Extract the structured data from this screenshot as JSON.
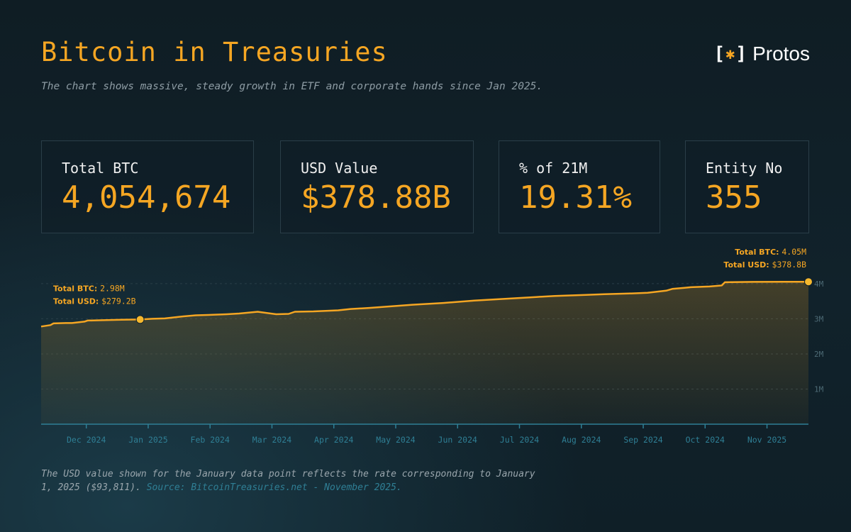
{
  "header": {
    "title": "Bitcoin in Treasuries",
    "subtitle": "The chart shows massive, steady growth in ETF and corporate hands since Jan 2025."
  },
  "logo": {
    "text": "Protos",
    "mark_left": "[",
    "mark_star": "✱",
    "mark_right": "]"
  },
  "stats": [
    {
      "label": "Total BTC",
      "value": "4,054,674"
    },
    {
      "label": "USD Value",
      "value": "$378.88B"
    },
    {
      "label": "% of 21M",
      "value": "19.31%"
    },
    {
      "label": "Entity No",
      "value": "355"
    }
  ],
  "colors": {
    "accent": "#f5a623",
    "background": "#10202a",
    "axis": "#2f7f95",
    "card_border": "#2a3e48"
  },
  "chart_data": {
    "type": "area",
    "x_tick_labels": [
      "Dec 2024",
      "Jan 2025",
      "Feb 2024",
      "Mar 2024",
      "Apr 2024",
      "May 2024",
      "Jun 2024",
      "Jul 2024",
      "Aug 2024",
      "Sep 2024",
      "Oct 2024",
      "Nov 2025"
    ],
    "y_tick_labels": [
      "1M",
      "2M",
      "3M",
      "4M"
    ],
    "ylim": [
      0,
      4200000
    ],
    "xlim": [
      0,
      12.4
    ],
    "grid": true,
    "series": [
      {
        "x": [
          0,
          0.15,
          0.2,
          0.4,
          0.5,
          0.7,
          0.75,
          1.0,
          1.3,
          1.6,
          1.8,
          2.0,
          2.3,
          2.5,
          2.7,
          3.0,
          3.2,
          3.5,
          3.8,
          4.0,
          4.1,
          4.4,
          4.8,
          5.0,
          5.3,
          6.0,
          6.5,
          7.0,
          7.5,
          7.8,
          8.0,
          8.3,
          8.8,
          9.1,
          9.5,
          9.8,
          10.1,
          10.2,
          10.4,
          10.5,
          10.8,
          11.0,
          11.05,
          11.5,
          12.0,
          12.4
        ],
        "values": [
          2780000,
          2820000,
          2870000,
          2880000,
          2880000,
          2920000,
          2950000,
          2960000,
          2975000,
          2980000,
          3000000,
          3010000,
          3070000,
          3100000,
          3110000,
          3130000,
          3150000,
          3200000,
          3130000,
          3140000,
          3200000,
          3210000,
          3240000,
          3280000,
          3310000,
          3400000,
          3450000,
          3520000,
          3570000,
          3600000,
          3620000,
          3650000,
          3680000,
          3700000,
          3720000,
          3740000,
          3800000,
          3850000,
          3880000,
          3900000,
          3920000,
          3950000,
          4040000,
          4050000,
          4055000,
          4054674
        ]
      }
    ],
    "annotations": [
      {
        "x": 1.6,
        "y": 2980000,
        "btc_label": "Total BTC:",
        "btc_value": "2.98M",
        "usd_label": "Total USD:",
        "usd_value": "$279.2B"
      },
      {
        "x": 12.4,
        "y": 4054674,
        "btc_label": "Total BTC:",
        "btc_value": "4.05M",
        "usd_label": "Total USD:",
        "usd_value": "$378.8B"
      }
    ]
  },
  "footnote": {
    "text": "The USD value shown for the January data point reflects the rate corresponding to January 1, 2025 ($93,811).",
    "source": "Source: BitcoinTreasuries.net - November 2025."
  }
}
